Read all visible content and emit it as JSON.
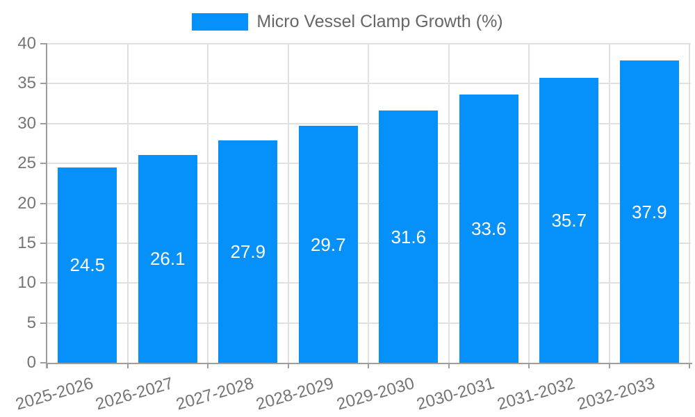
{
  "legend": {
    "label": "Micro Vessel Clamp Growth (%)"
  },
  "colors": {
    "bar": "#0691FA",
    "grid": "#E0E0E0",
    "axis": "#9E9E9E",
    "tick_text": "#757575",
    "legend_text": "#666666",
    "value_label": "#FFFFFF"
  },
  "chart_data": {
    "type": "bar",
    "title": "Micro Vessel Clamp Growth (%)",
    "categories": [
      "2025-2026",
      "2026-2027",
      "2027-2028",
      "2028-2029",
      "2029-2030",
      "2030-2031",
      "2031-2032",
      "2032-2033"
    ],
    "values": [
      24.5,
      26.1,
      27.9,
      29.7,
      31.6,
      33.6,
      35.7,
      37.9
    ],
    "yticks": [
      0,
      5,
      10,
      15,
      20,
      25,
      30,
      35,
      40
    ],
    "ylim": [
      0,
      40
    ],
    "xlabel": "",
    "ylabel": "",
    "grid": true,
    "legend_position": "top-center",
    "value_labels": "inside-center",
    "x_label_rotation_deg": -16
  }
}
